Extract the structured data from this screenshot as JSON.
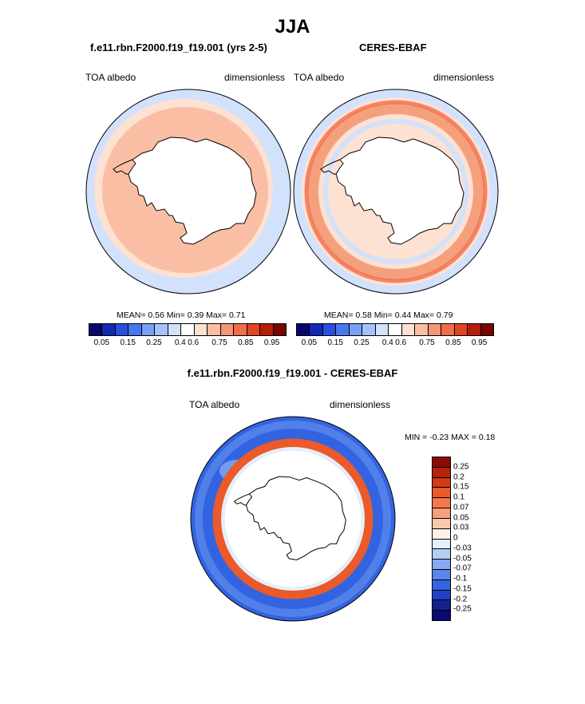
{
  "figure": {
    "title": "JJA"
  },
  "chart_data": [
    {
      "type": "heatmap",
      "projection": "south-polar-stereographic",
      "title": "f.e11.rbn.F2000.f19_f19.001 (yrs 2-5)",
      "left_label": "TOA albedo",
      "right_label": "dimensionless",
      "stats": {
        "mean_label": "MEAN=",
        "mean": "0.56",
        "min_label": "Min=",
        "min": "0.39",
        "max_label": "Max=",
        "max": "0.71"
      },
      "colorbar_ticks": [
        "0.05",
        "0.15",
        "0.25",
        "0.4",
        "0.6",
        "0.75",
        "0.85",
        "0.95"
      ]
    },
    {
      "type": "heatmap",
      "projection": "south-polar-stereographic",
      "title": "CERES-EBAF",
      "left_label": "TOA albedo",
      "right_label": "dimensionless",
      "stats": {
        "mean_label": "MEAN=",
        "mean": "0.58",
        "min_label": "Min=",
        "min": "0.44",
        "max_label": "Max=",
        "max": "0.79"
      },
      "colorbar_ticks": [
        "0.05",
        "0.15",
        "0.25",
        "0.4",
        "0.6",
        "0.75",
        "0.85",
        "0.95"
      ]
    },
    {
      "type": "heatmap",
      "projection": "south-polar-stereographic",
      "title": "f.e11.rbn.F2000.f19_f19.001 - CERES-EBAF",
      "left_label": "TOA albedo",
      "right_label": "dimensionless",
      "minmax": {
        "min_label": "MIN =",
        "min": "-0.23",
        "max_label": "MAX =",
        "max": "0.18"
      },
      "colorbar_levels": [
        "0.25",
        "0.2",
        "0.15",
        "0.1",
        "0.07",
        "0.05",
        "0.03",
        "0",
        "-0.03",
        "-0.05",
        "-0.07",
        "-0.1",
        "-0.15",
        "-0.2",
        "-0.25"
      ]
    }
  ],
  "palettes": {
    "abs": [
      "#08086e",
      "#1428b4",
      "#2850e0",
      "#4678f0",
      "#78a0f5",
      "#a5c3fa",
      "#d2e1fc",
      "#ffffff",
      "#fde1d2",
      "#fabea5",
      "#f59678",
      "#f06e4b",
      "#e04620",
      "#b41e0a",
      "#780500"
    ],
    "diff": [
      "#8c0a0a",
      "#b4230a",
      "#d23c14",
      "#eb5a28",
      "#f5784b",
      "#f5a07d",
      "#fac8aa",
      "#fff0e6",
      "#e6f0fc",
      "#b4cdf5",
      "#87aaf0",
      "#5a87eb",
      "#3264e1",
      "#1e41c8",
      "#14238c",
      "#0a0a6e"
    ]
  }
}
